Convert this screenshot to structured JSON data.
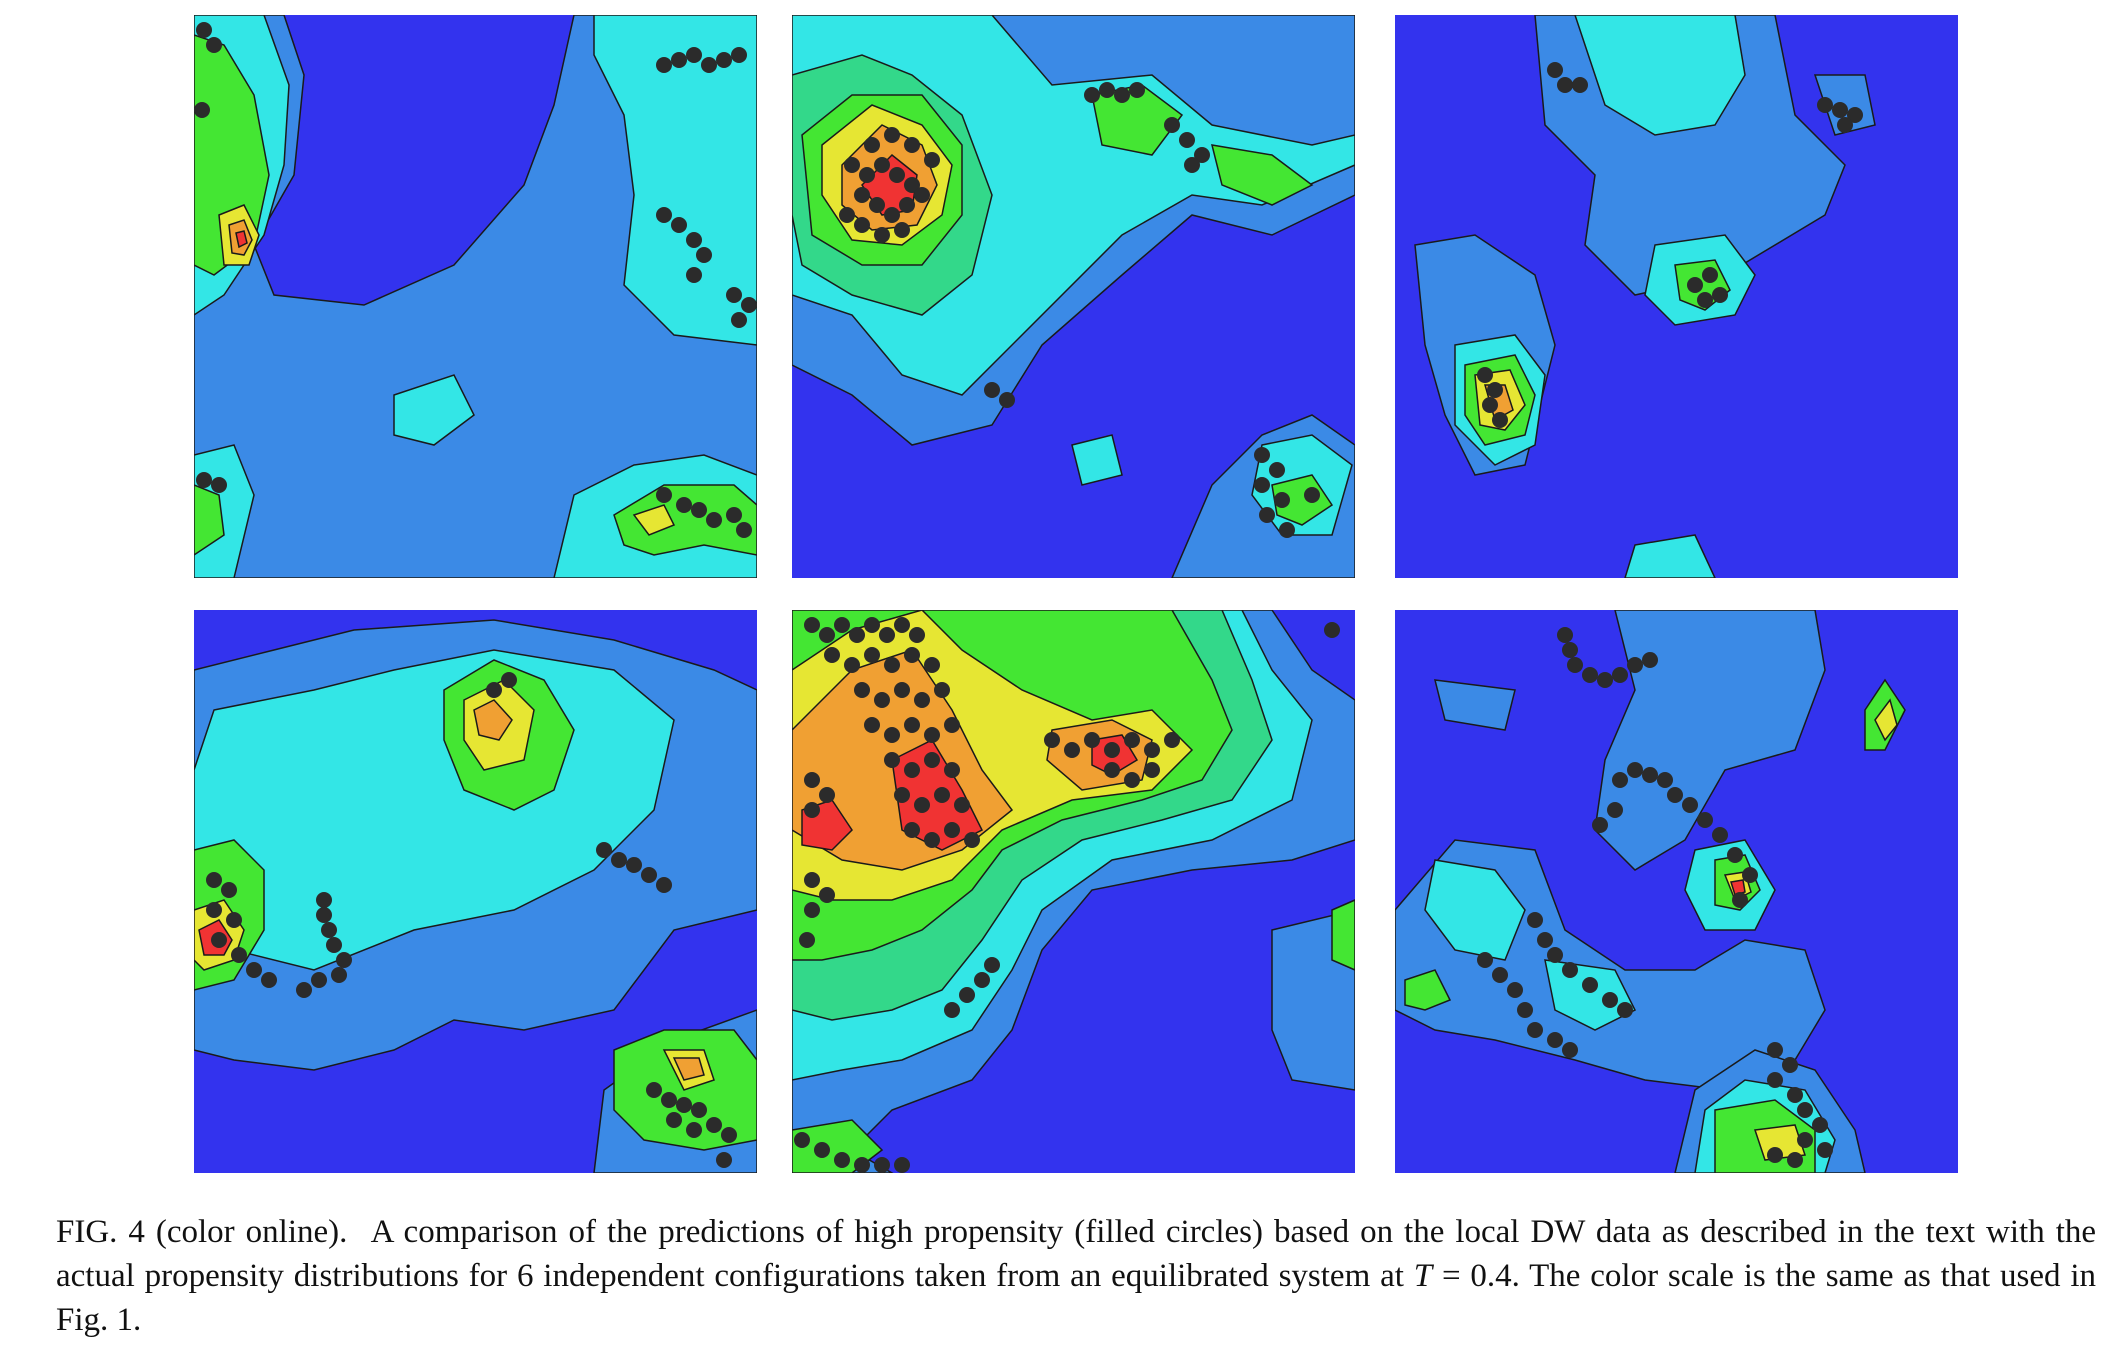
{
  "figure": {
    "caption": {
      "label": "FIG. 4 (color online).",
      "text_before_var": "A comparison of the predictions of high propensity (filled circles) based on the local DW data as described in the text with the actual propensity distributions for 6 independent configurations taken from an equilibrated system at",
      "variable": "T",
      "text_after_var": "= 0.4. The color scale is the same as that used in Fig. 1."
    },
    "colors": {
      "background": "#3333ee",
      "level1": "#3b8ae6",
      "level2": "#33e6e6",
      "level3": "#33d88a",
      "level4": "#44e633",
      "level5": "#e6e633",
      "level6": "#f0a033",
      "level7": "#f03333",
      "contour": "#1a1a1a",
      "circles": "#2b2b2b"
    },
    "panels": [
      {
        "id": "config-1"
      },
      {
        "id": "config-2"
      },
      {
        "id": "config-3"
      },
      {
        "id": "config-4"
      },
      {
        "id": "config-5"
      },
      {
        "id": "config-6"
      }
    ]
  }
}
